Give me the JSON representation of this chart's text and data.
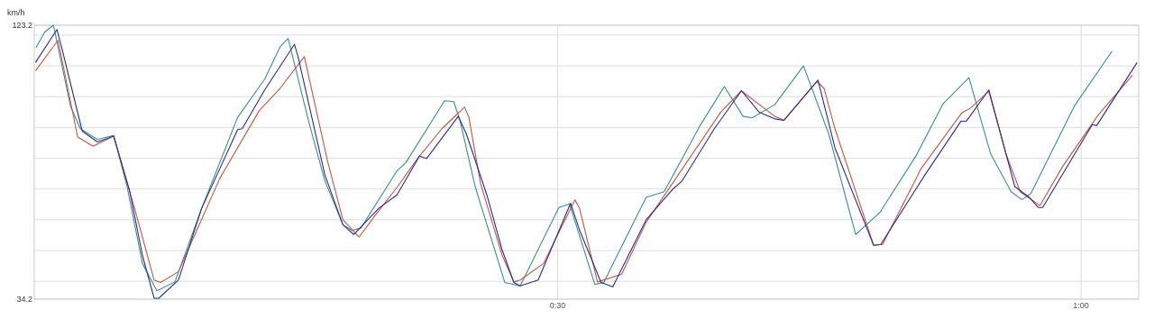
{
  "chart_data": {
    "type": "line",
    "ylabel": "km/h",
    "xlim": [
      0,
      63.3
    ],
    "ylim": [
      34.2,
      123.2
    ],
    "xticks": [
      {
        "value": 30,
        "label": "0:30"
      },
      {
        "value": 60,
        "label": "1:00"
      }
    ],
    "yticks": [
      34.2,
      {
        "value": 40,
        "label": null
      },
      {
        "value": 50,
        "label": null
      },
      {
        "value": 60,
        "label": null
      },
      {
        "value": 70,
        "label": null
      },
      {
        "value": 80,
        "label": null
      },
      {
        "value": 90,
        "label": null
      },
      {
        "value": 100,
        "label": null
      },
      {
        "value": 110,
        "label": null
      },
      {
        "value": 120,
        "label": null
      },
      123.2
    ],
    "grid": true,
    "marker": "none",
    "line_style": "solid",
    "series": [
      {
        "color": "#3a9088",
        "x": [
          0.1,
          0.6,
          1.1,
          2.08,
          2.64,
          3.62,
          4.55,
          5.32,
          6.2,
          7.03,
          8.06,
          9.6,
          11.66,
          13.21,
          14.09,
          14.55,
          15.79,
          16.66,
          17.69,
          18.21,
          18.72,
          20.79,
          21.3,
          23.52,
          24.04,
          24.4,
          25.27,
          26.97,
          27.85,
          30.07,
          30.68,
          32.13,
          32.64,
          35.07,
          36.1,
          38.16,
          39.55,
          40.63,
          41.15,
          42.44,
          44.09,
          45.53,
          47.08,
          48.47,
          50.53,
          52.08,
          53.57,
          54.81,
          55.99,
          56.61,
          57.13,
          59.6,
          61.77
        ],
        "values": [
          115.9,
          121.0,
          123.2,
          96.8,
          89.6,
          86.1,
          87.4,
          70.8,
          45.8,
          36.9,
          39.8,
          63.8,
          93.3,
          105.7,
          116.2,
          118.9,
          90.6,
          72.6,
          58.4,
          56.5,
          57.3,
          75.9,
          78.6,
          98.7,
          98.4,
          92.3,
          70.8,
          39.6,
          38.5,
          64.0,
          65.1,
          39.0,
          39.6,
          67.3,
          69.1,
          90.6,
          103.3,
          93.6,
          93.1,
          97.4,
          110.0,
          88.0,
          55.2,
          62.4,
          80.7,
          97.6,
          106.2,
          81.5,
          69.1,
          66.5,
          68.6,
          96.8,
          114.8
        ]
      },
      {
        "color": "#c8553d",
        "x": [
          0.07,
          1.36,
          2.49,
          3.37,
          4.55,
          5.84,
          6.87,
          7.23,
          8.26,
          10.63,
          12.9,
          14.09,
          15.48,
          16.82,
          17.69,
          18.62,
          19.6,
          20.79,
          21.97,
          23.37,
          24.66,
          24.91,
          25.58,
          26.82,
          27.49,
          27.85,
          29.19,
          30.99,
          31.25,
          32.28,
          33.67,
          35.07,
          39.34,
          40.53,
          42.44,
          42.96,
          44.86,
          45.27,
          45.89,
          48.11,
          48.62,
          50.84,
          53.16,
          53.67,
          54.71,
          55.69,
          56.51,
          57.64,
          58.93,
          60.99,
          62.95
        ],
        "values": [
          108.4,
          118.3,
          86.9,
          83.9,
          87.2,
          61.9,
          40.4,
          39.6,
          43.1,
          73.4,
          95.5,
          102.7,
          113.0,
          78.8,
          60.0,
          54.4,
          61.9,
          70.5,
          79.9,
          89.6,
          96.6,
          93.3,
          71.8,
          48.4,
          39.8,
          40.4,
          45.8,
          66.5,
          63.8,
          39.8,
          42.3,
          59.2,
          94.9,
          101.9,
          93.6,
          92.3,
          104.9,
          102.7,
          89.6,
          51.7,
          52.0,
          76.7,
          94.7,
          96.3,
          101.7,
          81.5,
          69.1,
          64.6,
          77.2,
          94.1,
          107.0
        ]
      },
      {
        "color": "#2a2a9a",
        "x": [
          0.07,
          1.3,
          1.56,
          2.75,
          3.62,
          4.55,
          5.48,
          6.2,
          6.87,
          7.13,
          8.26,
          9.6,
          11.66,
          11.92,
          13.21,
          14.91,
          15.12,
          16.66,
          17.69,
          18.31,
          19.76,
          20.79,
          22.08,
          22.49,
          24.3,
          24.76,
          25.94,
          26.81,
          27.49,
          27.85,
          28.88,
          30.74,
          31.26,
          32.49,
          33.16,
          35.07,
          36.61,
          37.13,
          38.98,
          40.53,
          41.56,
          42.44,
          42.96,
          44.92,
          45.89,
          48.11,
          48.52,
          51.04,
          53.11,
          53.42,
          54.71,
          56.2,
          57.03,
          57.54,
          57.8,
          60.64,
          60.89,
          63.21
        ],
        "values": [
          111.1,
          121.8,
          116.2,
          88.8,
          85.3,
          87.2,
          69.1,
          48.4,
          34.5,
          34.5,
          40.4,
          63.8,
          89.3,
          89.6,
          102.2,
          117.0,
          113.0,
          74.5,
          58.4,
          55.2,
          63.8,
          68.1,
          80.7,
          79.9,
          93.6,
          88.0,
          68.1,
          50.3,
          39.6,
          38.5,
          40.4,
          65.4,
          56.5,
          39.6,
          38.2,
          60.0,
          70.0,
          72.6,
          89.6,
          101.9,
          94.9,
          92.8,
          92.3,
          105.4,
          83.4,
          51.7,
          52.0,
          74.5,
          92.0,
          92.0,
          102.2,
          70.8,
          67.3,
          64.0,
          64.0,
          90.9,
          90.6,
          111.1
        ]
      }
    ]
  }
}
